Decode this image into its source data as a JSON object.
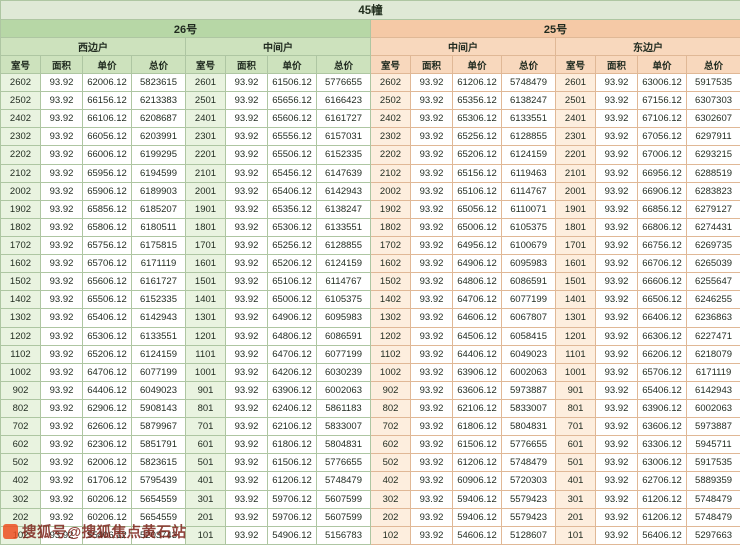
{
  "title": "45幢",
  "watermark": {
    "text": "搜狐号@搜狐焦点黄石站",
    "icon": "sohu-logo"
  },
  "colors": {
    "building26_header": "#b7d7a6",
    "building25_header": "#f5c9a6",
    "left_subheader": "#cde2bd",
    "right_subheader": "#f8d8bd",
    "left_room_tint": "#e9f3e0",
    "right_room_tint": "#fdeede",
    "watermark_text": "#7d241b",
    "watermark_logo": "#ee4f22"
  },
  "table": {
    "buildings": [
      {
        "label": "26号"
      },
      {
        "label": "25号"
      }
    ],
    "column_headers": [
      "室号",
      "面积",
      "单价",
      "总价"
    ],
    "groups": [
      {
        "building": "26号",
        "unit_type": "西边户",
        "rows": [
          [
            "2602",
            "93.92",
            "62006.12",
            "5823615"
          ],
          [
            "2502",
            "93.92",
            "66156.12",
            "6213383"
          ],
          [
            "2402",
            "93.92",
            "66106.12",
            "6208687"
          ],
          [
            "2302",
            "93.92",
            "66056.12",
            "6203991"
          ],
          [
            "2202",
            "93.92",
            "66006.12",
            "6199295"
          ],
          [
            "2102",
            "93.92",
            "65956.12",
            "6194599"
          ],
          [
            "2002",
            "93.92",
            "65906.12",
            "6189903"
          ],
          [
            "1902",
            "93.92",
            "65856.12",
            "6185207"
          ],
          [
            "1802",
            "93.92",
            "65806.12",
            "6180511"
          ],
          [
            "1702",
            "93.92",
            "65756.12",
            "6175815"
          ],
          [
            "1602",
            "93.92",
            "65706.12",
            "6171119"
          ],
          [
            "1502",
            "93.92",
            "65606.12",
            "6161727"
          ],
          [
            "1402",
            "93.92",
            "65506.12",
            "6152335"
          ],
          [
            "1302",
            "93.92",
            "65406.12",
            "6142943"
          ],
          [
            "1202",
            "93.92",
            "65306.12",
            "6133551"
          ],
          [
            "1102",
            "93.92",
            "65206.12",
            "6124159"
          ],
          [
            "1002",
            "93.92",
            "64706.12",
            "6077199"
          ],
          [
            "902",
            "93.92",
            "64406.12",
            "6049023"
          ],
          [
            "802",
            "93.92",
            "62906.12",
            "5908143"
          ],
          [
            "702",
            "93.92",
            "62606.12",
            "5879967"
          ],
          [
            "602",
            "93.92",
            "62306.12",
            "5851791"
          ],
          [
            "502",
            "93.92",
            "62006.12",
            "5823615"
          ],
          [
            "402",
            "93.92",
            "61706.12",
            "5795439"
          ],
          [
            "302",
            "93.92",
            "60206.12",
            "5654559"
          ],
          [
            "202",
            "93.92",
            "60206.12",
            "5654559"
          ],
          [
            "102",
            "93.92",
            "55406.12",
            "5203743"
          ]
        ]
      },
      {
        "building": "26号",
        "unit_type": "中间户",
        "rows": [
          [
            "2601",
            "93.92",
            "61506.12",
            "5776655"
          ],
          [
            "2501",
            "93.92",
            "65656.12",
            "6166423"
          ],
          [
            "2401",
            "93.92",
            "65606.12",
            "6161727"
          ],
          [
            "2301",
            "93.92",
            "65556.12",
            "6157031"
          ],
          [
            "2201",
            "93.92",
            "65506.12",
            "6152335"
          ],
          [
            "2101",
            "93.92",
            "65456.12",
            "6147639"
          ],
          [
            "2001",
            "93.92",
            "65406.12",
            "6142943"
          ],
          [
            "1901",
            "93.92",
            "65356.12",
            "6138247"
          ],
          [
            "1801",
            "93.92",
            "65306.12",
            "6133551"
          ],
          [
            "1701",
            "93.92",
            "65256.12",
            "6128855"
          ],
          [
            "1601",
            "93.92",
            "65206.12",
            "6124159"
          ],
          [
            "1501",
            "93.92",
            "65106.12",
            "6114767"
          ],
          [
            "1401",
            "93.92",
            "65006.12",
            "6105375"
          ],
          [
            "1301",
            "93.92",
            "64906.12",
            "6095983"
          ],
          [
            "1201",
            "93.92",
            "64806.12",
            "6086591"
          ],
          [
            "1101",
            "93.92",
            "64706.12",
            "6077199"
          ],
          [
            "1001",
            "93.92",
            "64206.12",
            "6030239"
          ],
          [
            "901",
            "93.92",
            "63906.12",
            "6002063"
          ],
          [
            "801",
            "93.92",
            "62406.12",
            "5861183"
          ],
          [
            "701",
            "93.92",
            "62106.12",
            "5833007"
          ],
          [
            "601",
            "93.92",
            "61806.12",
            "5804831"
          ],
          [
            "501",
            "93.92",
            "61506.12",
            "5776655"
          ],
          [
            "401",
            "93.92",
            "61206.12",
            "5748479"
          ],
          [
            "301",
            "93.92",
            "59706.12",
            "5607599"
          ],
          [
            "201",
            "93.92",
            "59706.12",
            "5607599"
          ],
          [
            "101",
            "93.92",
            "54906.12",
            "5156783"
          ]
        ]
      },
      {
        "building": "25号",
        "unit_type": "中间户",
        "rows": [
          [
            "2602",
            "93.92",
            "61206.12",
            "5748479"
          ],
          [
            "2502",
            "93.92",
            "65356.12",
            "6138247"
          ],
          [
            "2402",
            "93.92",
            "65306.12",
            "6133551"
          ],
          [
            "2302",
            "93.92",
            "65256.12",
            "6128855"
          ],
          [
            "2202",
            "93.92",
            "65206.12",
            "6124159"
          ],
          [
            "2102",
            "93.92",
            "65156.12",
            "6119463"
          ],
          [
            "2002",
            "93.92",
            "65106.12",
            "6114767"
          ],
          [
            "1902",
            "93.92",
            "65056.12",
            "6110071"
          ],
          [
            "1802",
            "93.92",
            "65006.12",
            "6105375"
          ],
          [
            "1702",
            "93.92",
            "64956.12",
            "6100679"
          ],
          [
            "1602",
            "93.92",
            "64906.12",
            "6095983"
          ],
          [
            "1502",
            "93.92",
            "64806.12",
            "6086591"
          ],
          [
            "1402",
            "93.92",
            "64706.12",
            "6077199"
          ],
          [
            "1302",
            "93.92",
            "64606.12",
            "6067807"
          ],
          [
            "1202",
            "93.92",
            "64506.12",
            "6058415"
          ],
          [
            "1102",
            "93.92",
            "64406.12",
            "6049023"
          ],
          [
            "1002",
            "93.92",
            "63906.12",
            "6002063"
          ],
          [
            "902",
            "93.92",
            "63606.12",
            "5973887"
          ],
          [
            "802",
            "93.92",
            "62106.12",
            "5833007"
          ],
          [
            "702",
            "93.92",
            "61806.12",
            "5804831"
          ],
          [
            "602",
            "93.92",
            "61506.12",
            "5776655"
          ],
          [
            "502",
            "93.92",
            "61206.12",
            "5748479"
          ],
          [
            "402",
            "93.92",
            "60906.12",
            "5720303"
          ],
          [
            "302",
            "93.92",
            "59406.12",
            "5579423"
          ],
          [
            "202",
            "93.92",
            "59406.12",
            "5579423"
          ],
          [
            "102",
            "93.92",
            "54606.12",
            "5128607"
          ]
        ]
      },
      {
        "building": "25号",
        "unit_type": "东边户",
        "rows": [
          [
            "2601",
            "93.92",
            "63006.12",
            "5917535"
          ],
          [
            "2501",
            "93.92",
            "67156.12",
            "6307303"
          ],
          [
            "2401",
            "93.92",
            "67106.12",
            "6302607"
          ],
          [
            "2301",
            "93.92",
            "67056.12",
            "6297911"
          ],
          [
            "2201",
            "93.92",
            "67006.12",
            "6293215"
          ],
          [
            "2101",
            "93.92",
            "66956.12",
            "6288519"
          ],
          [
            "2001",
            "93.92",
            "66906.12",
            "6283823"
          ],
          [
            "1901",
            "93.92",
            "66856.12",
            "6279127"
          ],
          [
            "1801",
            "93.92",
            "66806.12",
            "6274431"
          ],
          [
            "1701",
            "93.92",
            "66756.12",
            "6269735"
          ],
          [
            "1601",
            "93.92",
            "66706.12",
            "6265039"
          ],
          [
            "1501",
            "93.92",
            "66606.12",
            "6255647"
          ],
          [
            "1401",
            "93.92",
            "66506.12",
            "6246255"
          ],
          [
            "1301",
            "93.92",
            "66406.12",
            "6236863"
          ],
          [
            "1201",
            "93.92",
            "66306.12",
            "6227471"
          ],
          [
            "1101",
            "93.92",
            "66206.12",
            "6218079"
          ],
          [
            "1001",
            "93.92",
            "65706.12",
            "6171119"
          ],
          [
            "901",
            "93.92",
            "65406.12",
            "6142943"
          ],
          [
            "801",
            "93.92",
            "63906.12",
            "6002063"
          ],
          [
            "701",
            "93.92",
            "63606.12",
            "5973887"
          ],
          [
            "601",
            "93.92",
            "63306.12",
            "5945711"
          ],
          [
            "501",
            "93.92",
            "63006.12",
            "5917535"
          ],
          [
            "401",
            "93.92",
            "62706.12",
            "5889359"
          ],
          [
            "301",
            "93.92",
            "61206.12",
            "5748479"
          ],
          [
            "201",
            "93.92",
            "61206.12",
            "5748479"
          ],
          [
            "101",
            "93.92",
            "56406.12",
            "5297663"
          ]
        ]
      }
    ]
  }
}
